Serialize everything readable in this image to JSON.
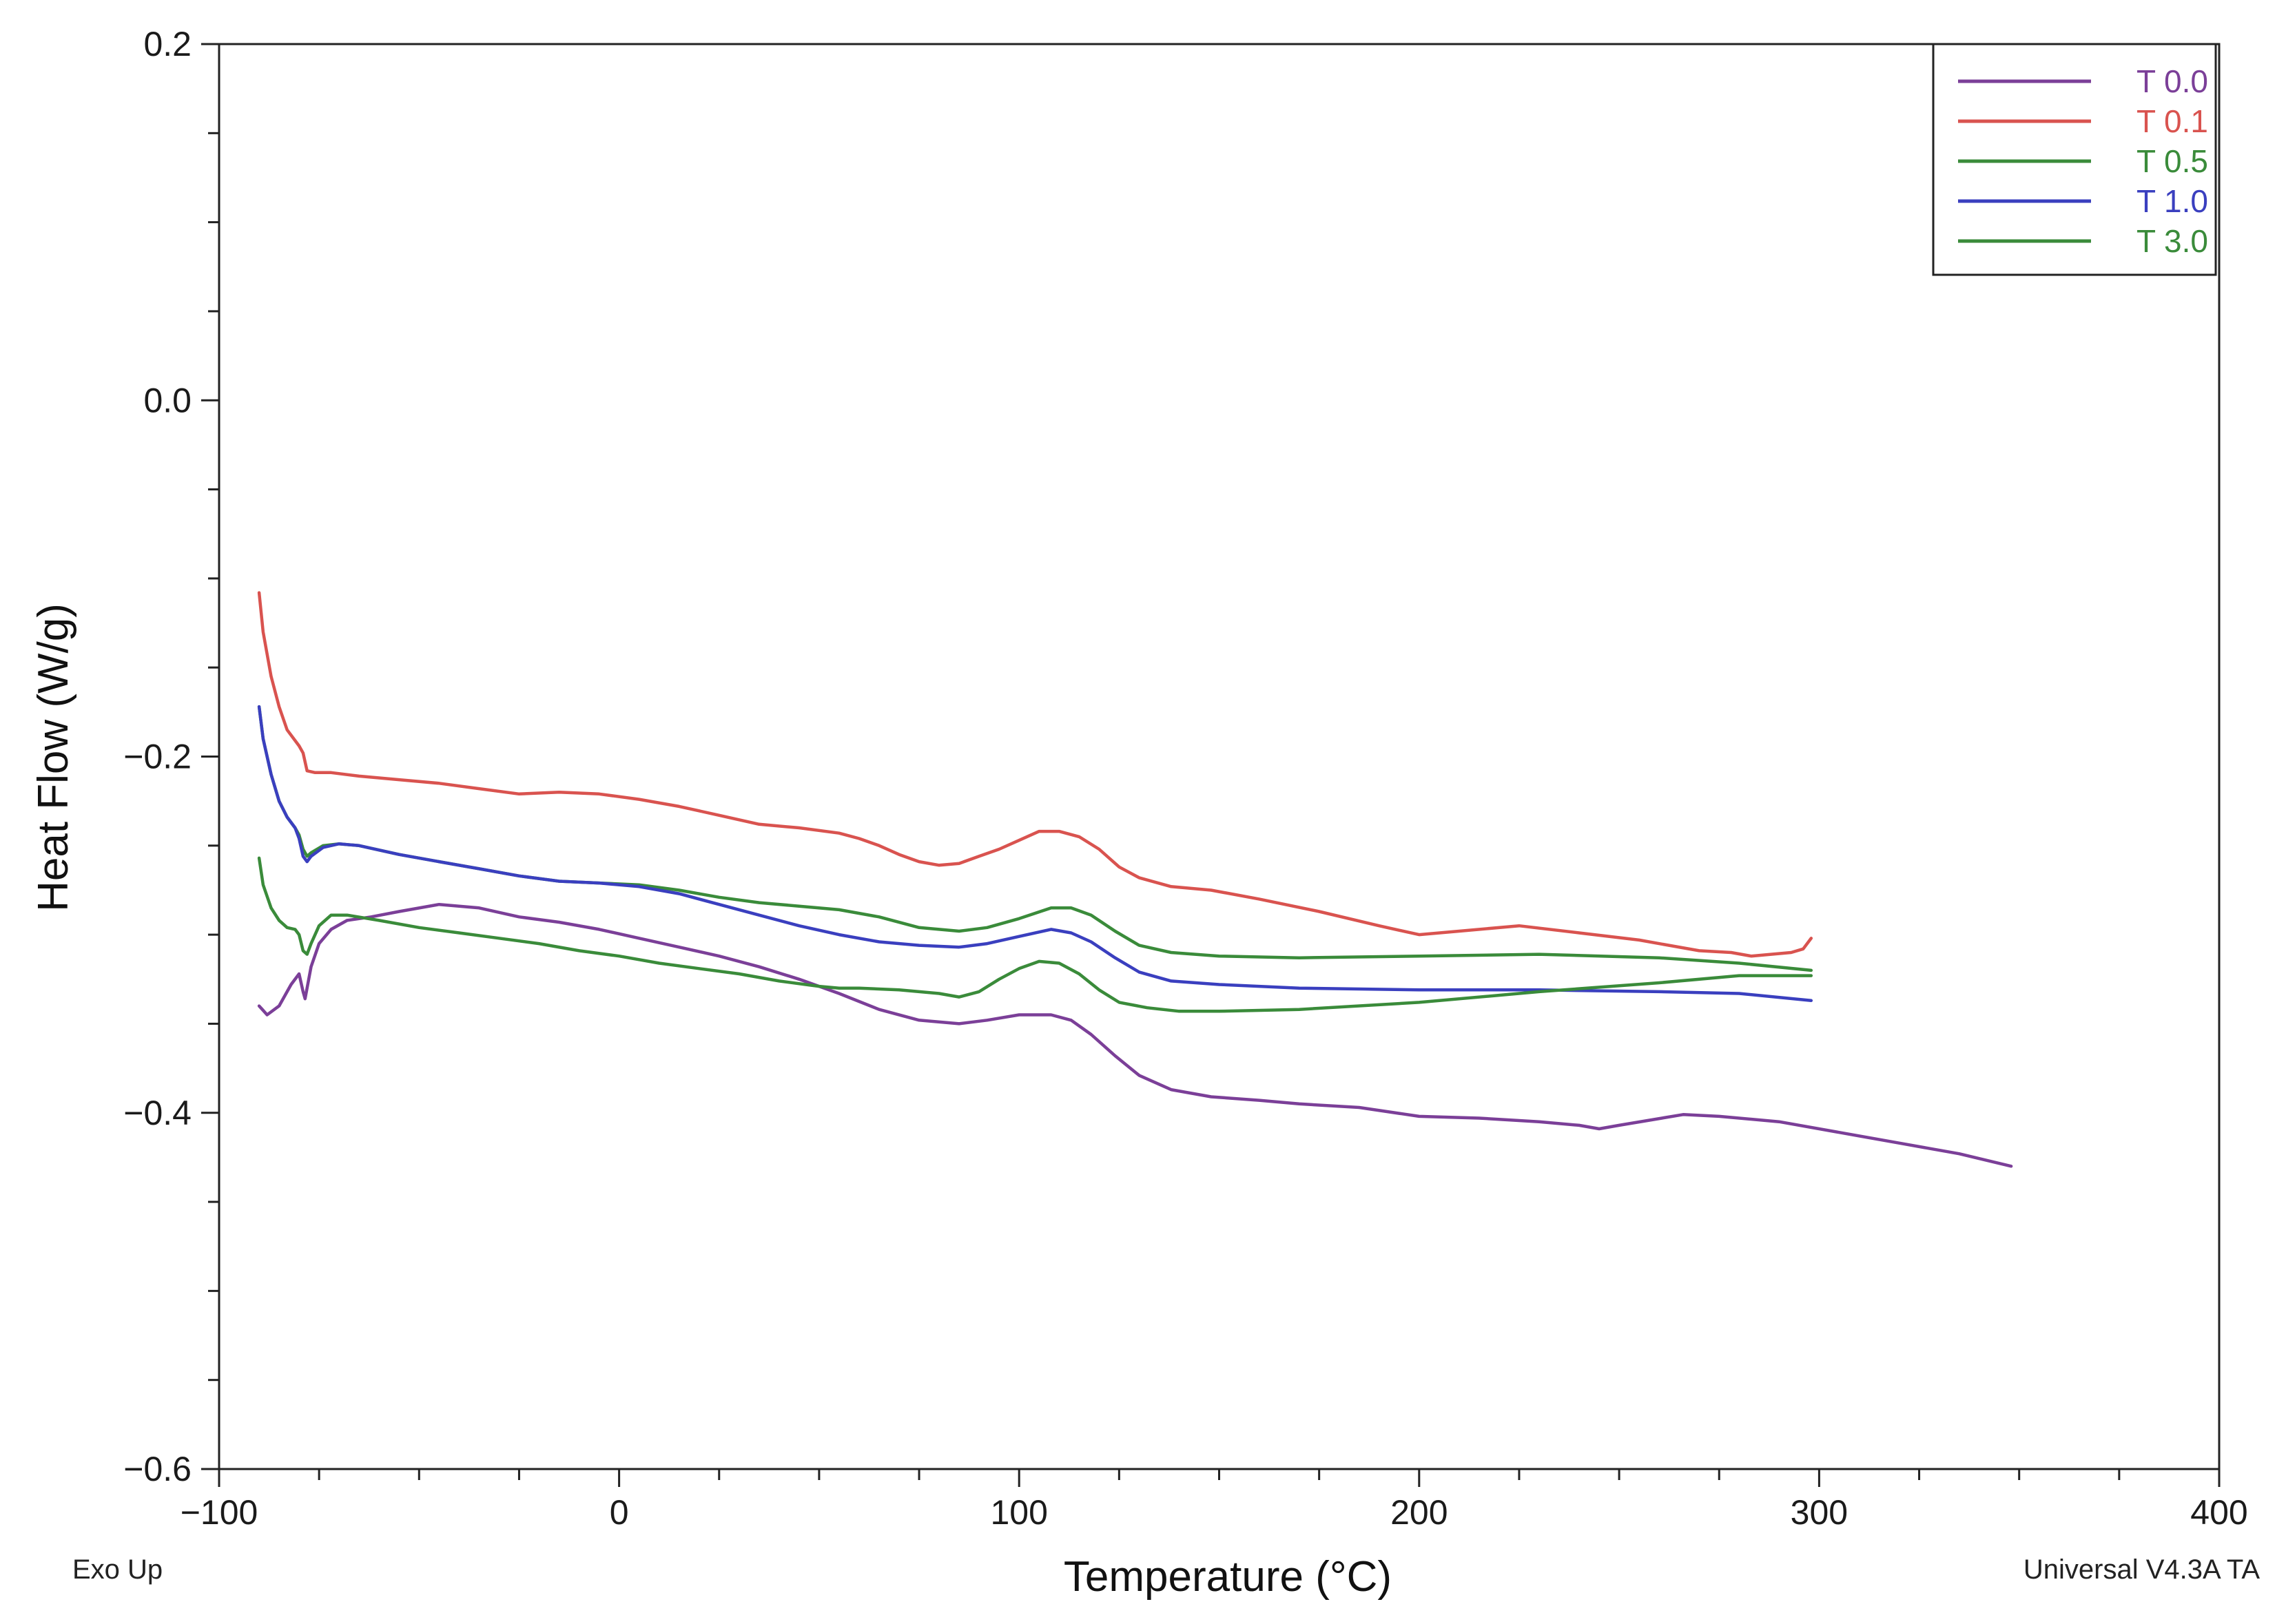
{
  "chart_data": {
    "type": "line",
    "title": "",
    "xlabel": "Temperature (°C)",
    "ylabel": "Heat Flow (W/g)",
    "xlim": [
      -100,
      400
    ],
    "ylim": [
      -0.6,
      0.2
    ],
    "x_major_ticks": [
      -100,
      0,
      100,
      200,
      300,
      400
    ],
    "x_tick_labels": [
      "−100",
      "0",
      "100",
      "200",
      "300",
      "400"
    ],
    "y_major_ticks": [
      0.2,
      0.0,
      -0.2,
      -0.4,
      -0.6
    ],
    "y_tick_labels": [
      "0.2",
      "0.0",
      "−0.2",
      "−0.4",
      "−0.6"
    ],
    "grid": false,
    "legend_position": "top-right",
    "footer_left": "Exo Up",
    "footer_right": "Universal V4.3A TA",
    "series": [
      {
        "name": "T 0.0",
        "color": "#7b3f98",
        "x": [
          -90,
          -88,
          -85,
          -82,
          -80,
          -79,
          -78.5,
          -77,
          -75,
          -72,
          -68,
          -62,
          -55,
          -45,
          -35,
          -25,
          -15,
          -5,
          5,
          15,
          25,
          35,
          45,
          55,
          65,
          75,
          85,
          92,
          100,
          108,
          113,
          118,
          124,
          130,
          138,
          148,
          160,
          170,
          185,
          200,
          215,
          230,
          240,
          245,
          250,
          258,
          266,
          275,
          290,
          305,
          320,
          335,
          348
        ],
        "y": [
          -0.34,
          -0.345,
          -0.34,
          -0.328,
          -0.322,
          -0.332,
          -0.336,
          -0.318,
          -0.305,
          -0.297,
          -0.292,
          -0.29,
          -0.287,
          -0.283,
          -0.285,
          -0.29,
          -0.293,
          -0.297,
          -0.302,
          -0.307,
          -0.312,
          -0.318,
          -0.325,
          -0.333,
          -0.342,
          -0.348,
          -0.35,
          -0.348,
          -0.345,
          -0.345,
          -0.348,
          -0.356,
          -0.368,
          -0.379,
          -0.387,
          -0.391,
          -0.393,
          -0.395,
          -0.397,
          -0.402,
          -0.403,
          -0.405,
          -0.407,
          -0.409,
          -0.407,
          -0.404,
          -0.401,
          -0.402,
          -0.405,
          -0.411,
          -0.417,
          -0.423,
          -0.43
        ]
      },
      {
        "name": "T 0.1",
        "color": "#d9534f",
        "x": [
          -90,
          -89,
          -87,
          -85,
          -83,
          -80,
          -79,
          -78,
          -76,
          -72,
          -65,
          -55,
          -45,
          -35,
          -25,
          -15,
          -5,
          5,
          15,
          25,
          35,
          45,
          55,
          60,
          65,
          70,
          75,
          80,
          85,
          90,
          95,
          100,
          105,
          110,
          115,
          120,
          125,
          130,
          138,
          148,
          160,
          175,
          190,
          200,
          210,
          225,
          240,
          255,
          270,
          278,
          283,
          288,
          293,
          296,
          298
        ],
        "y": [
          -0.108,
          -0.13,
          -0.155,
          -0.172,
          -0.185,
          -0.194,
          -0.198,
          -0.208,
          -0.209,
          -0.209,
          -0.211,
          -0.213,
          -0.215,
          -0.218,
          -0.221,
          -0.22,
          -0.221,
          -0.224,
          -0.228,
          -0.233,
          -0.238,
          -0.24,
          -0.243,
          -0.246,
          -0.25,
          -0.255,
          -0.259,
          -0.261,
          -0.26,
          -0.256,
          -0.252,
          -0.247,
          -0.242,
          -0.242,
          -0.245,
          -0.252,
          -0.262,
          -0.268,
          -0.273,
          -0.275,
          -0.28,
          -0.287,
          -0.295,
          -0.3,
          -0.298,
          -0.295,
          -0.299,
          -0.303,
          -0.309,
          -0.31,
          -0.312,
          -0.311,
          -0.31,
          -0.308,
          -0.302
        ]
      },
      {
        "name": "T 0.5",
        "color": "#3a8b3a",
        "x": [
          -90,
          -89,
          -87,
          -85,
          -83,
          -81,
          -80,
          -79,
          -78,
          -77,
          -74,
          -70,
          -65,
          -55,
          -45,
          -35,
          -25,
          -15,
          -5,
          5,
          15,
          25,
          35,
          45,
          55,
          65,
          75,
          85,
          92,
          100,
          108,
          113,
          118,
          124,
          130,
          138,
          150,
          170,
          200,
          230,
          260,
          280,
          298
        ],
        "y": [
          -0.172,
          -0.19,
          -0.21,
          -0.225,
          -0.234,
          -0.24,
          -0.244,
          -0.252,
          -0.256,
          -0.254,
          -0.25,
          -0.249,
          -0.25,
          -0.255,
          -0.259,
          -0.263,
          -0.267,
          -0.27,
          -0.271,
          -0.272,
          -0.275,
          -0.279,
          -0.282,
          -0.284,
          -0.286,
          -0.29,
          -0.296,
          -0.298,
          -0.296,
          -0.291,
          -0.285,
          -0.285,
          -0.289,
          -0.298,
          -0.306,
          -0.31,
          -0.312,
          -0.313,
          -0.312,
          -0.311,
          -0.313,
          -0.316,
          -0.32
        ]
      },
      {
        "name": "T 1.0",
        "color": "#3a3fbf",
        "x": [
          -90,
          -89,
          -87,
          -85,
          -83,
          -81,
          -80,
          -79,
          -78,
          -77,
          -74,
          -70,
          -65,
          -55,
          -45,
          -35,
          -25,
          -15,
          -5,
          5,
          15,
          25,
          35,
          45,
          55,
          65,
          75,
          85,
          92,
          100,
          108,
          113,
          118,
          124,
          130,
          138,
          150,
          170,
          200,
          230,
          260,
          280,
          298
        ],
        "y": [
          -0.172,
          -0.19,
          -0.21,
          -0.225,
          -0.234,
          -0.24,
          -0.246,
          -0.256,
          -0.259,
          -0.256,
          -0.251,
          -0.249,
          -0.25,
          -0.255,
          -0.259,
          -0.263,
          -0.267,
          -0.27,
          -0.271,
          -0.273,
          -0.277,
          -0.283,
          -0.289,
          -0.295,
          -0.3,
          -0.304,
          -0.306,
          -0.307,
          -0.305,
          -0.301,
          -0.297,
          -0.299,
          -0.304,
          -0.313,
          -0.321,
          -0.326,
          -0.328,
          -0.33,
          -0.331,
          -0.331,
          -0.332,
          -0.333,
          -0.337
        ]
      },
      {
        "name": "T 3.0",
        "color": "#3a8b3a",
        "x": [
          -90,
          -89,
          -87,
          -85,
          -83,
          -81,
          -80,
          -79,
          -78,
          -77,
          -75,
          -72,
          -68,
          -60,
          -50,
          -40,
          -30,
          -20,
          -10,
          0,
          10,
          20,
          30,
          40,
          50,
          55,
          60,
          70,
          80,
          85,
          90,
          95,
          100,
          105,
          110,
          115,
          120,
          125,
          132,
          140,
          150,
          170,
          200,
          230,
          260,
          280,
          298
        ],
        "y": [
          -0.257,
          -0.272,
          -0.285,
          -0.292,
          -0.296,
          -0.297,
          -0.3,
          -0.309,
          -0.311,
          -0.305,
          -0.295,
          -0.289,
          -0.289,
          -0.292,
          -0.296,
          -0.299,
          -0.302,
          -0.305,
          -0.309,
          -0.312,
          -0.316,
          -0.319,
          -0.322,
          -0.326,
          -0.329,
          -0.33,
          -0.33,
          -0.331,
          -0.333,
          -0.335,
          -0.332,
          -0.325,
          -0.319,
          -0.315,
          -0.316,
          -0.322,
          -0.331,
          -0.338,
          -0.341,
          -0.343,
          -0.343,
          -0.342,
          -0.338,
          -0.332,
          -0.327,
          -0.323,
          -0.323
        ]
      }
    ]
  }
}
